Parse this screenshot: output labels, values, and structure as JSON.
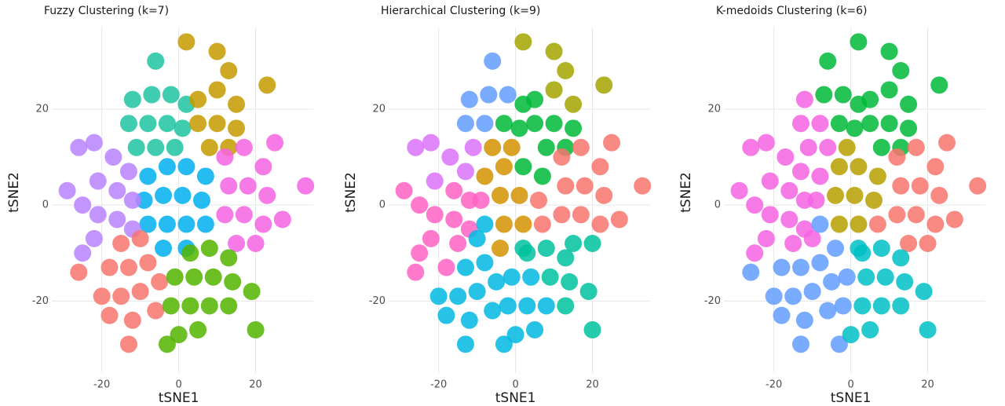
{
  "chart_data": [
    {
      "type": "scatter",
      "title": "Fuzzy Clustering (k=7)",
      "x_label": "tSNE1",
      "y_label": "tSNE2",
      "xlim": [
        -33,
        35
      ],
      "ylim": [
        -35,
        37
      ],
      "xticks": [
        -20,
        0,
        20
      ],
      "yticks": [
        -20,
        0,
        20
      ],
      "grid": true,
      "series": [
        {
          "color": "#1fc3a0",
          "x": [
            -12,
            -7,
            -2,
            2,
            -13,
            -8,
            -3,
            1,
            -11,
            -6,
            -1,
            -6
          ],
          "y": [
            22,
            23,
            23,
            21,
            17,
            17,
            17,
            16,
            12,
            12,
            12,
            30
          ]
        },
        {
          "color": "#c49a00",
          "x": [
            5,
            10,
            15,
            5,
            10,
            15,
            8,
            13,
            2,
            10,
            13,
            23
          ],
          "y": [
            22,
            24,
            21,
            17,
            17,
            16,
            12,
            12,
            34,
            32,
            28,
            25
          ]
        },
        {
          "color": "#00b0f0",
          "x": [
            -8,
            -3,
            2,
            7,
            -9,
            -4,
            1,
            6,
            -8,
            -3,
            2,
            7,
            -4,
            2
          ],
          "y": [
            6,
            8,
            8,
            6,
            1,
            2,
            2,
            1,
            -4,
            -4,
            -4,
            -4,
            -9,
            -9
          ]
        },
        {
          "color": "#f564e3",
          "x": [
            12,
            17,
            22,
            13,
            18,
            23,
            12,
            17,
            22,
            15,
            20,
            25,
            33,
            27
          ],
          "y": [
            10,
            12,
            8,
            4,
            4,
            2,
            -2,
            -2,
            -4,
            -8,
            -8,
            13,
            4,
            -3
          ]
        },
        {
          "color": "#b983ff",
          "x": [
            -22,
            -26,
            -17,
            -13,
            -21,
            -16,
            -12,
            -29,
            -25,
            -21,
            -16,
            -12,
            -22,
            -25
          ],
          "y": [
            13,
            12,
            10,
            7,
            5,
            3,
            1,
            3,
            0,
            -2,
            -3,
            -5,
            -7,
            -10
          ]
        },
        {
          "color": "#f8766d",
          "x": [
            -15,
            -10,
            -18,
            -13,
            -8,
            -20,
            -15,
            -10,
            -5,
            -18,
            -12,
            -6,
            -26,
            -13
          ],
          "y": [
            -8,
            -7,
            -13,
            -13,
            -12,
            -19,
            -19,
            -18,
            -16,
            -23,
            -24,
            -22,
            -14,
            -29
          ]
        },
        {
          "color": "#53b400",
          "x": [
            3,
            8,
            13,
            -1,
            4,
            9,
            14,
            -2,
            3,
            8,
            13,
            0,
            5,
            19,
            20,
            -3
          ],
          "y": [
            -10,
            -9,
            -11,
            -15,
            -15,
            -15,
            -16,
            -21,
            -21,
            -21,
            -21,
            -27,
            -26,
            -18,
            -26,
            -29
          ]
        }
      ]
    },
    {
      "type": "scatter",
      "title": "Hierarchical Clustering (k=9)",
      "x_label": "tSNE1",
      "y_label": "tSNE2",
      "xlim": [
        -33,
        35
      ],
      "ylim": [
        -35,
        37
      ],
      "xticks": [
        -20,
        0,
        20
      ],
      "yticks": [
        -20,
        0,
        20
      ],
      "grid": true,
      "series": [
        {
          "color": "#619cff",
          "x": [
            -12,
            -7,
            -2,
            -13,
            -8,
            -6
          ],
          "y": [
            22,
            23,
            23,
            17,
            17,
            30
          ]
        },
        {
          "color": "#a3a500",
          "x": [
            2,
            10,
            13,
            23,
            10,
            15
          ],
          "y": [
            34,
            32,
            28,
            25,
            24,
            21
          ]
        },
        {
          "color": "#00ba38",
          "x": [
            2,
            -3,
            1,
            5,
            5,
            10,
            15,
            8,
            13,
            2,
            7
          ],
          "y": [
            21,
            17,
            16,
            22,
            17,
            17,
            16,
            12,
            12,
            8,
            6
          ]
        },
        {
          "color": "#db72fb",
          "x": [
            -22,
            -17,
            -13,
            -21,
            -11,
            -26
          ],
          "y": [
            13,
            10,
            7,
            5,
            12,
            12
          ]
        },
        {
          "color": "#d39200",
          "x": [
            -6,
            -1,
            -8,
            -3,
            -4,
            1,
            -3,
            2,
            -4
          ],
          "y": [
            12,
            12,
            6,
            8,
            2,
            2,
            -4,
            -4,
            -9
          ]
        },
        {
          "color": "#ff61c3",
          "x": [
            -16,
            -29,
            -25,
            -21,
            -16,
            -12,
            -22,
            -25,
            -9,
            -12,
            -15,
            -18,
            -26
          ],
          "y": [
            3,
            3,
            0,
            -2,
            -3,
            -5,
            -7,
            -10,
            1,
            1,
            -8,
            -13,
            -14
          ]
        },
        {
          "color": "#f8766d",
          "x": [
            12,
            17,
            22,
            13,
            18,
            23,
            12,
            17,
            22,
            25,
            33,
            27,
            6,
            7
          ],
          "y": [
            10,
            12,
            8,
            4,
            4,
            2,
            -2,
            -2,
            -4,
            13,
            4,
            -3,
            1,
            -4
          ]
        },
        {
          "color": "#00c19f",
          "x": [
            15,
            20,
            2,
            3,
            8,
            13,
            9,
            14,
            13,
            19,
            20
          ],
          "y": [
            -8,
            -8,
            -9,
            -10,
            -9,
            -11,
            -15,
            -16,
            -21,
            -18,
            -26
          ]
        },
        {
          "color": "#00b9e3",
          "x": [
            -8,
            -10,
            -13,
            -8,
            -20,
            -15,
            -10,
            -5,
            -18,
            -12,
            -6,
            -13,
            -1,
            4,
            -2,
            3,
            8,
            0,
            5,
            -3
          ],
          "y": [
            -4,
            -7,
            -13,
            -12,
            -19,
            -19,
            -18,
            -16,
            -23,
            -24,
            -22,
            -29,
            -15,
            -15,
            -21,
            -21,
            -21,
            -27,
            -26,
            -29
          ]
        }
      ]
    },
    {
      "type": "scatter",
      "title": "K-medoids Clustering (k=6)",
      "x_label": "tSNE1",
      "y_label": "tSNE2",
      "xlim": [
        -33,
        35
      ],
      "ylim": [
        -35,
        37
      ],
      "xticks": [
        -20,
        0,
        20
      ],
      "yticks": [
        -20,
        0,
        20
      ],
      "grid": true,
      "series": [
        {
          "color": "#00ba38",
          "x": [
            -7,
            -2,
            2,
            -3,
            1,
            -6,
            5,
            10,
            15,
            5,
            10,
            15,
            8,
            13,
            2,
            10,
            13,
            23
          ],
          "y": [
            23,
            23,
            21,
            17,
            16,
            30,
            22,
            24,
            21,
            17,
            17,
            16,
            12,
            12,
            34,
            32,
            28,
            25
          ]
        },
        {
          "color": "#f564e3",
          "x": [
            -12,
            -13,
            -8,
            -11,
            -6,
            -22,
            -26,
            -17,
            -13,
            -21,
            -16,
            -12,
            -29,
            -25,
            -21,
            -16,
            -12,
            -22,
            -25,
            -9,
            -8,
            -15,
            -10
          ],
          "y": [
            22,
            17,
            17,
            12,
            12,
            13,
            12,
            10,
            7,
            5,
            3,
            1,
            3,
            0,
            -2,
            -3,
            -5,
            -7,
            -10,
            1,
            6,
            -8,
            -7
          ]
        },
        {
          "color": "#b79f00",
          "x": [
            -1,
            -3,
            2,
            -4,
            1,
            6,
            -3,
            2,
            7
          ],
          "y": [
            12,
            8,
            8,
            2,
            2,
            1,
            -4,
            -4,
            6
          ]
        },
        {
          "color": "#f8766d",
          "x": [
            12,
            17,
            22,
            13,
            18,
            23,
            12,
            17,
            22,
            15,
            20,
            25,
            33,
            27,
            7
          ],
          "y": [
            10,
            12,
            8,
            4,
            4,
            2,
            -2,
            -2,
            -4,
            -8,
            -8,
            13,
            4,
            -3,
            -4
          ]
        },
        {
          "color": "#619cff",
          "x": [
            -8,
            -4,
            -18,
            -13,
            -8,
            -20,
            -15,
            -10,
            -5,
            -18,
            -12,
            -6,
            -26,
            -13,
            -1,
            -2,
            -3
          ],
          "y": [
            -4,
            -9,
            -13,
            -13,
            -12,
            -19,
            -19,
            -18,
            -16,
            -23,
            -24,
            -22,
            -14,
            -29,
            -15,
            -21,
            -29
          ]
        },
        {
          "color": "#00bfc4",
          "x": [
            2,
            3,
            8,
            13,
            4,
            9,
            14,
            3,
            8,
            13,
            0,
            5,
            19,
            20
          ],
          "y": [
            -9,
            -10,
            -9,
            -11,
            -15,
            -15,
            -16,
            -21,
            -21,
            -21,
            -27,
            -26,
            -18,
            -26
          ]
        }
      ]
    }
  ]
}
